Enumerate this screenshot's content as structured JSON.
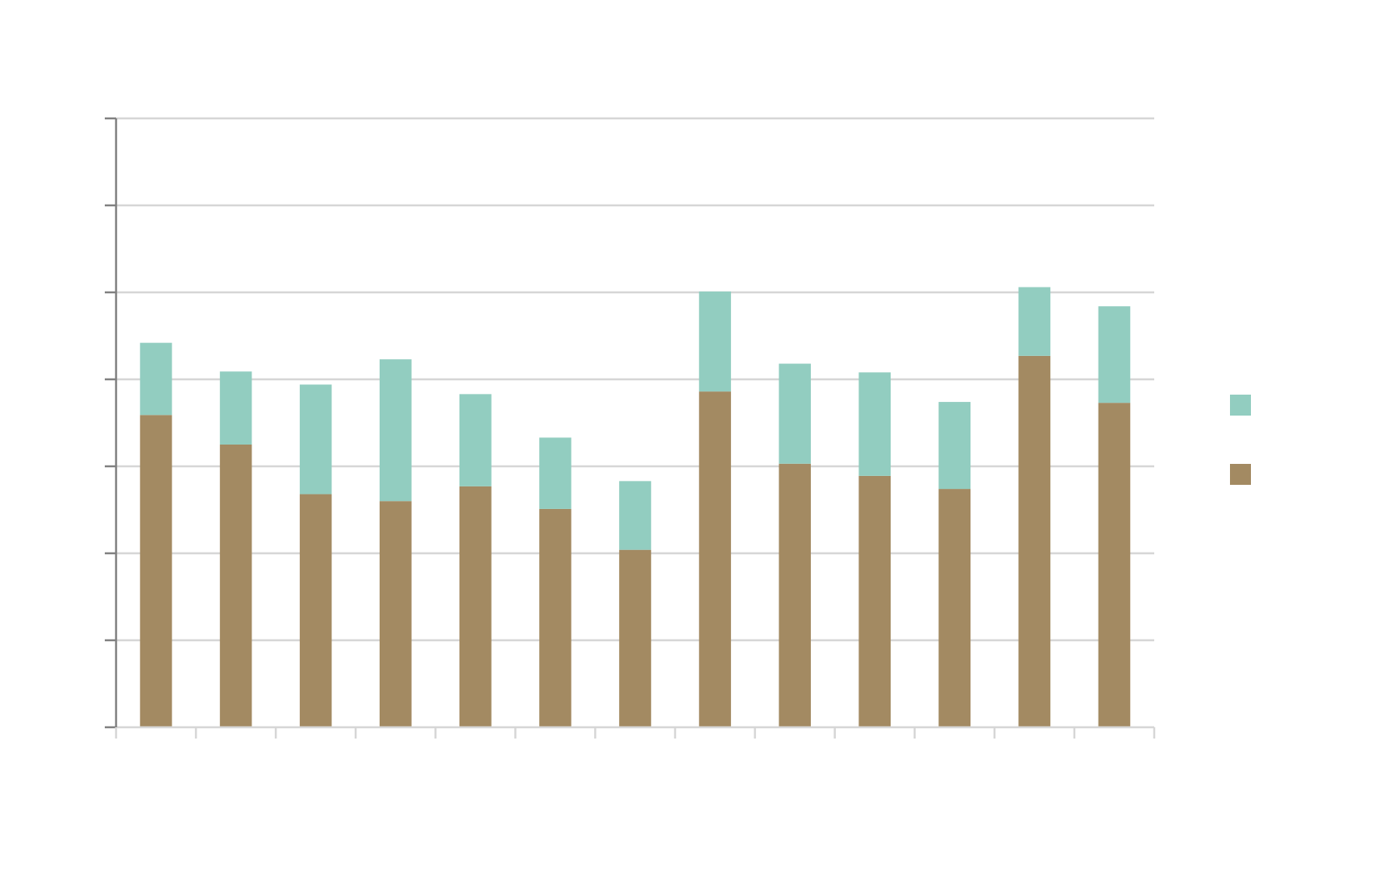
{
  "chart_data": {
    "type": "bar",
    "stacked": true,
    "title": "",
    "xlabel": "",
    "ylabel": "",
    "ylim": [
      0,
      7
    ],
    "y_gridlines": [
      0,
      1,
      2,
      3,
      4,
      5,
      6,
      7
    ],
    "grid": true,
    "legend_position": "right",
    "categories": [
      "",
      "",
      "",
      "",
      "",
      "",
      "",
      "",
      "",
      "",
      "",
      "",
      ""
    ],
    "series": [
      {
        "color": "#a38a62",
        "values": [
          3.59,
          3.25,
          2.68,
          2.6,
          2.77,
          2.51,
          2.04,
          3.86,
          3.03,
          2.89,
          2.74,
          4.27,
          3.73
        ]
      },
      {
        "color": "#92cdc0",
        "values": [
          0.83,
          0.84,
          1.26,
          1.63,
          1.06,
          0.82,
          0.79,
          1.15,
          1.15,
          1.19,
          1.0,
          0.79,
          1.11
        ]
      }
    ],
    "legend_order": [
      1,
      0
    ]
  }
}
